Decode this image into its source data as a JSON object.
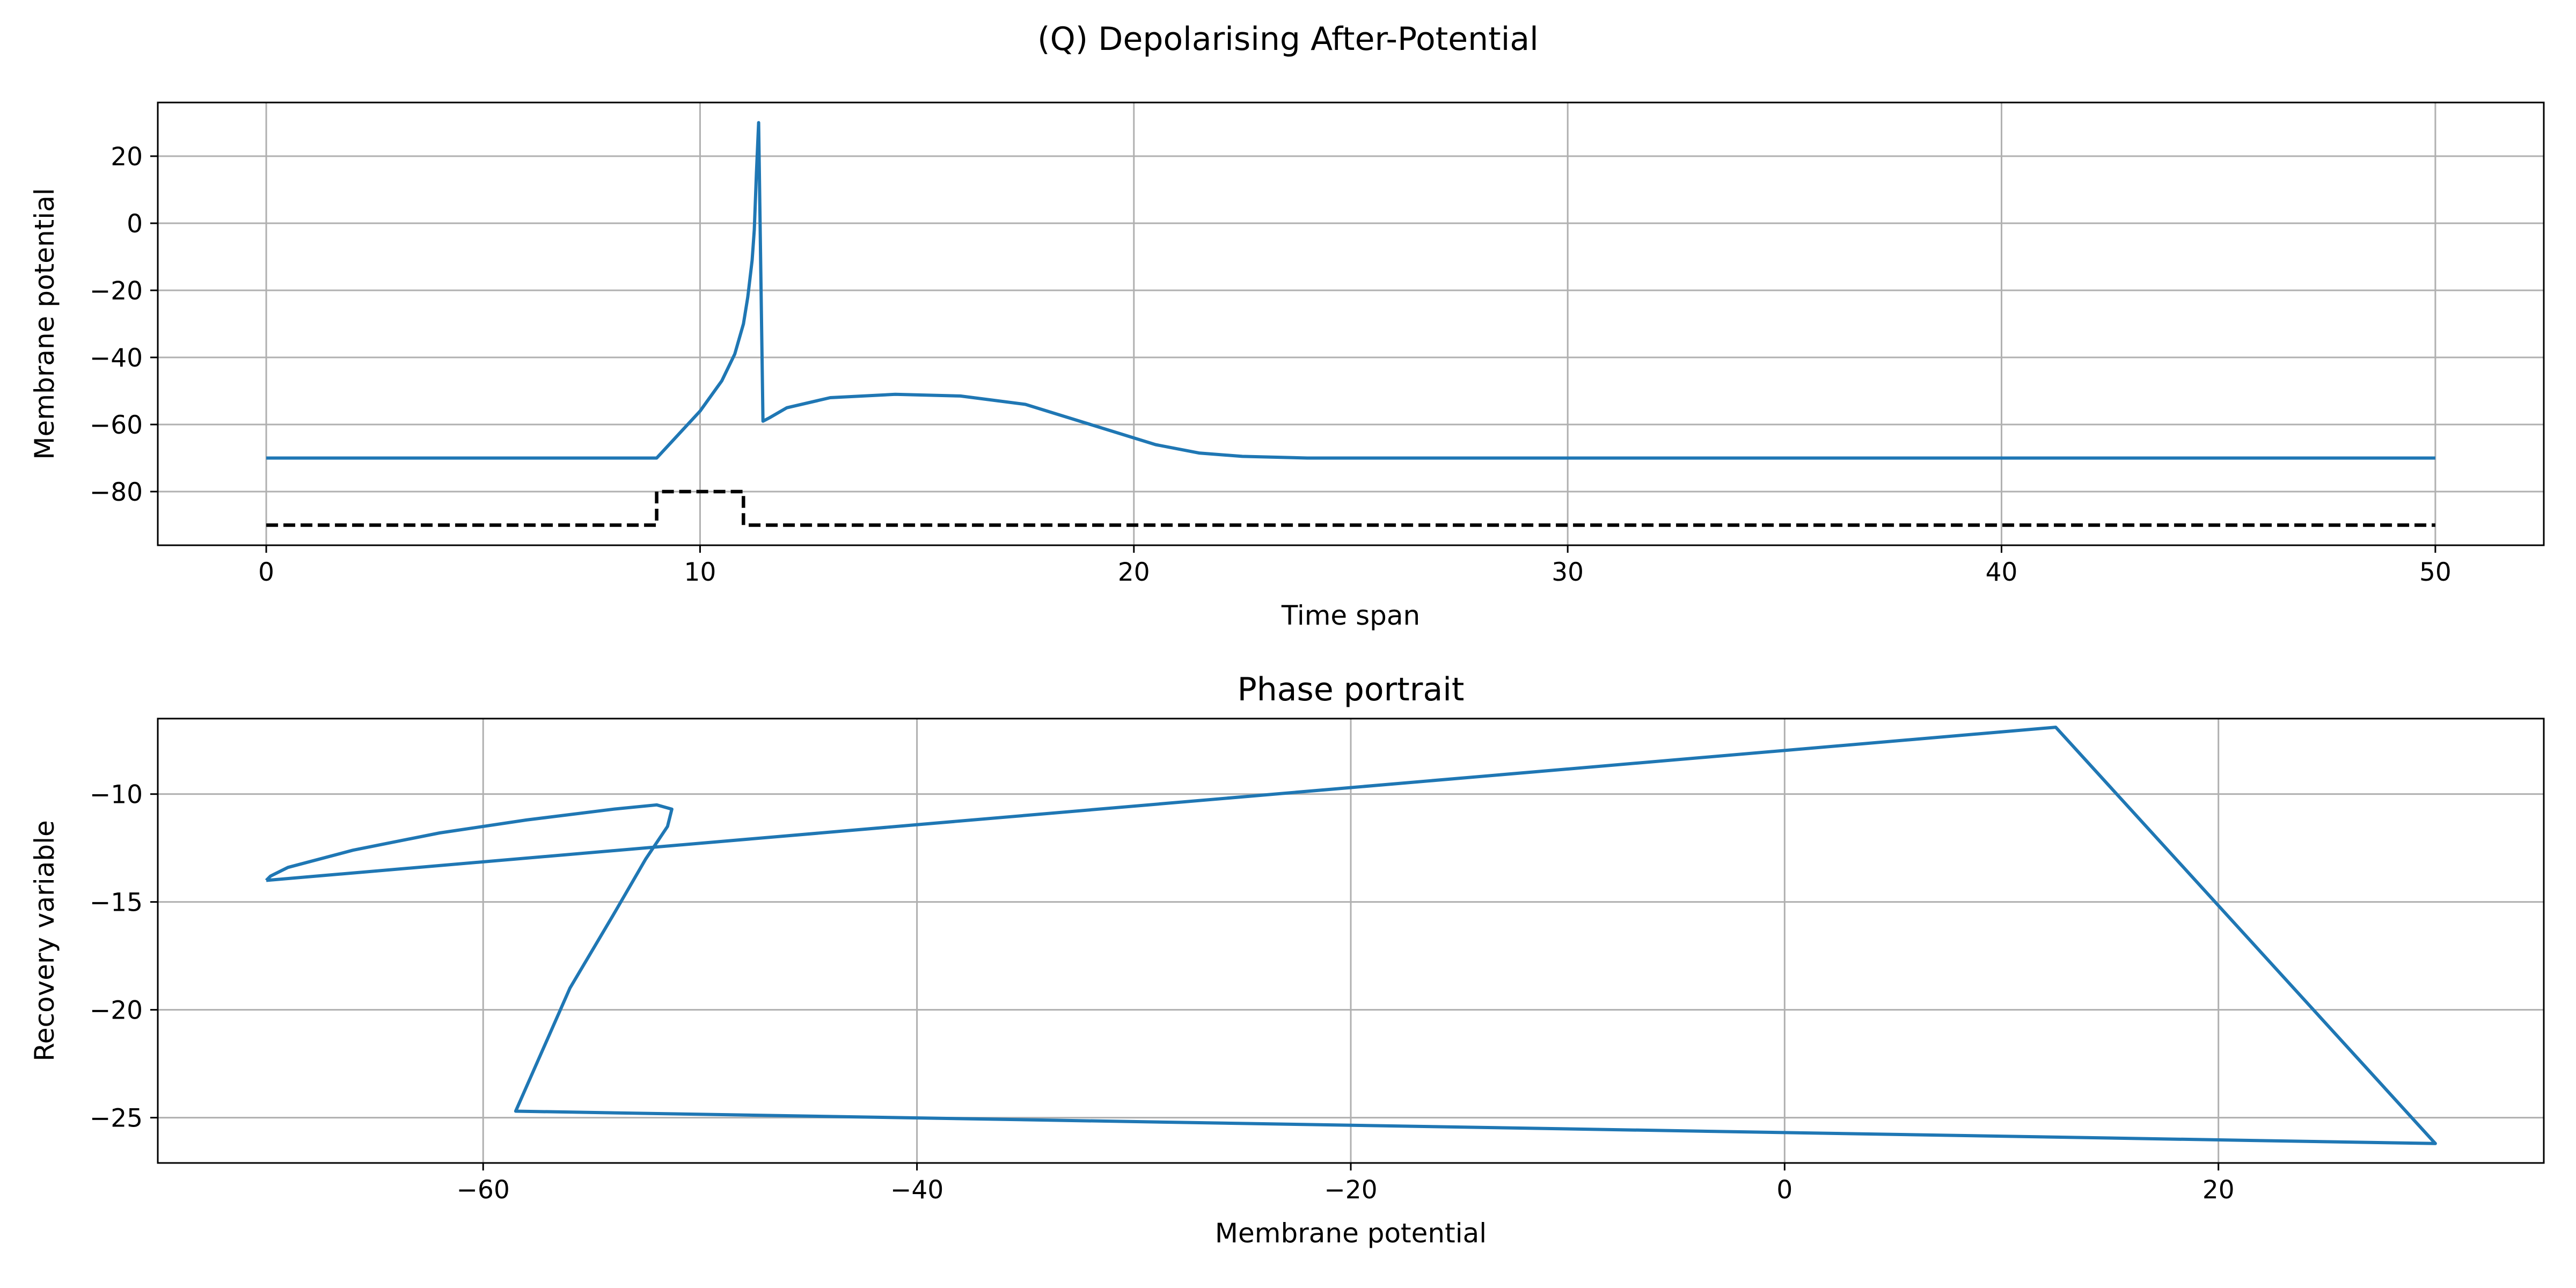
{
  "figure": {
    "suptitle": "(Q) Depolarising After-Potential"
  },
  "chart_data": [
    {
      "type": "line",
      "title": "",
      "xlabel": "Time span",
      "ylabel": "Membrane potential",
      "xlim": [
        -2.5,
        52.5
      ],
      "ylim": [
        -96,
        36
      ],
      "xticks": [
        0,
        10,
        20,
        30,
        40,
        50
      ],
      "yticks": [
        -80,
        -60,
        -40,
        -20,
        0,
        20
      ],
      "grid": true,
      "series": [
        {
          "color": "#1f77b4",
          "style": "solid",
          "x": [
            0,
            9.0,
            9.5,
            10.0,
            10.5,
            10.8,
            11.0,
            11.1,
            11.2,
            11.25,
            11.3,
            11.35,
            11.45,
            11.6,
            12.0,
            13.0,
            14.5,
            16.0,
            17.5,
            18.5,
            19.5,
            20.5,
            21.5,
            22.5,
            24.0,
            26.0,
            30.0,
            40.0,
            50.0
          ],
          "y": [
            -70,
            -70,
            -63,
            -56,
            -47,
            -39,
            -30,
            -22,
            -11,
            -2,
            15,
            30,
            -59,
            -58,
            -55,
            -52,
            -51,
            -51.5,
            -54,
            -58,
            -62,
            -66,
            -68.5,
            -69.5,
            -70,
            -70,
            -70,
            -70,
            -70
          ]
        },
        {
          "color": "#000000",
          "style": "dashed",
          "x": [
            0,
            9.0,
            9.0,
            11.0,
            11.0,
            50.0
          ],
          "y": [
            -90,
            -90,
            -80,
            -80,
            -90,
            -90
          ]
        }
      ]
    },
    {
      "type": "line",
      "title": "Phase portrait",
      "xlabel": "Membrane potential",
      "ylabel": "Recovery variable",
      "xlim": [
        -75,
        35
      ],
      "ylim": [
        -27.1,
        -6.5
      ],
      "xticks": [
        -60,
        -40,
        -20,
        0,
        20
      ],
      "yticks": [
        -25,
        -20,
        -15,
        -10
      ],
      "grid": true,
      "series": [
        {
          "color": "#1f77b4",
          "style": "solid",
          "x": [
            -70,
            -69.8,
            -69,
            -66,
            -62,
            -58,
            -54,
            -52,
            -51.3,
            -51.5,
            -52.5,
            -54,
            -56,
            -58.5,
            30,
            12.5,
            -70
          ],
          "y": [
            -14.0,
            -13.8,
            -13.4,
            -12.6,
            -11.8,
            -11.2,
            -10.7,
            -10.5,
            -10.7,
            -11.5,
            -13.0,
            -15.6,
            -19.0,
            -24.7,
            -26.2,
            -6.9,
            -14.0
          ]
        }
      ]
    }
  ]
}
